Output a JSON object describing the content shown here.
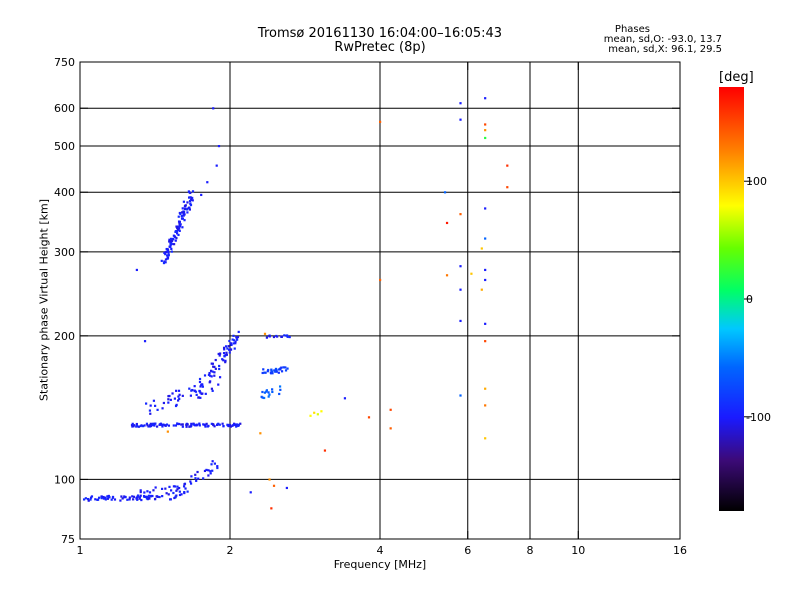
{
  "chart_data": {
    "type": "scatter",
    "title": "Tromsø 20161130 16:04:00–16:05:43",
    "subtitle": "RwPretec (8p)",
    "xlabel": "Frequency [MHz]",
    "ylabel": "Stationary phase Virtual Height [km]",
    "x_scale": "log",
    "y_scale": "log",
    "xlim": [
      1,
      16
    ],
    "ylim": [
      75,
      750
    ],
    "grid": true,
    "x_ticks": [
      {
        "value": 1,
        "label": "1"
      },
      {
        "value": 2,
        "label": "2"
      },
      {
        "value": 4,
        "label": "4"
      },
      {
        "value": 6,
        "label": "6"
      },
      {
        "value": 8,
        "label": "8"
      },
      {
        "value": 10,
        "label": "10"
      },
      {
        "value": 16,
        "label": "16"
      }
    ],
    "y_ticks": [
      {
        "value": 75,
        "label": "75"
      },
      {
        "value": 100,
        "label": "100"
      },
      {
        "value": 200,
        "label": "200"
      },
      {
        "value": 300,
        "label": "300"
      },
      {
        "value": 400,
        "label": "400"
      },
      {
        "value": 500,
        "label": "500"
      },
      {
        "value": 600,
        "label": "600"
      },
      {
        "value": 750,
        "label": "750"
      }
    ],
    "x_grid": [
      2,
      4,
      6,
      8,
      10
    ],
    "y_grid": [
      100,
      200,
      300,
      400,
      500,
      600
    ],
    "colorbar": {
      "label": "[deg]",
      "range": [
        -180,
        180
      ],
      "ticks": [
        {
          "value": 100,
          "label": "100"
        },
        {
          "value": 0,
          "label": "0"
        },
        {
          "value": -100,
          "label": "-100"
        }
      ],
      "placement": "right"
    },
    "stats": {
      "heading": "Phases",
      "line1": "mean, sd,O: -93.0, 13.7",
      "line2": "mean, sd,X: 96.1, 29.5"
    },
    "traces": [
      {
        "from": [
          1.0,
          91
        ],
        "to": [
          1.58,
          92
        ],
        "count": 70,
        "phase": -100,
        "spread": 0.012
      },
      {
        "from": [
          1.3,
          92
        ],
        "to": [
          1.62,
          97
        ],
        "count": 30,
        "phase": -100,
        "spread": 0.025
      },
      {
        "from": [
          1.55,
          92
        ],
        "to": [
          1.9,
          108
        ],
        "count": 30,
        "phase": -100,
        "spread": 0.03
      },
      {
        "from": [
          1.27,
          130
        ],
        "to": [
          2.1,
          130
        ],
        "count": 110,
        "phase": -100,
        "spread": 0.008
      },
      {
        "from": [
          1.35,
          140
        ],
        "to": [
          1.9,
          160
        ],
        "count": 40,
        "phase": -100,
        "spread": 0.035
      },
      {
        "from": [
          1.7,
          150
        ],
        "to": [
          2.08,
          200
        ],
        "count": 70,
        "phase": -100,
        "spread": 0.03
      },
      {
        "from": [
          2.3,
          168
        ],
        "to": [
          2.6,
          170
        ],
        "count": 30,
        "phase": -80,
        "spread": 0.012
      },
      {
        "from": [
          2.3,
          150
        ],
        "to": [
          2.55,
          154
        ],
        "count": 15,
        "phase": -60,
        "spread": 0.02
      },
      {
        "from": [
          2.35,
          199
        ],
        "to": [
          2.65,
          200
        ],
        "count": 15,
        "phase": -100,
        "spread": 0.006
      },
      {
        "from": [
          1.47,
          285
        ],
        "to": [
          1.68,
          400
        ],
        "count": 110,
        "phase": -100,
        "spread": 0.025
      }
    ],
    "points": [
      {
        "x": 1.35,
        "y": 195,
        "phase": -100
      },
      {
        "x": 1.88,
        "y": 455,
        "phase": -100
      },
      {
        "x": 1.9,
        "y": 500,
        "phase": -100
      },
      {
        "x": 1.85,
        "y": 600,
        "phase": -100
      },
      {
        "x": 1.75,
        "y": 395,
        "phase": -100
      },
      {
        "x": 1.8,
        "y": 420,
        "phase": -100
      },
      {
        "x": 1.3,
        "y": 275,
        "phase": -100
      },
      {
        "x": 1.5,
        "y": 126,
        "phase": 120
      },
      {
        "x": 2.4,
        "y": 100,
        "phase": 120
      },
      {
        "x": 2.45,
        "y": 97,
        "phase": 140
      },
      {
        "x": 2.42,
        "y": 87,
        "phase": 160
      },
      {
        "x": 2.6,
        "y": 96,
        "phase": -100
      },
      {
        "x": 2.2,
        "y": 94,
        "phase": -100
      },
      {
        "x": 2.3,
        "y": 125,
        "phase": 120
      },
      {
        "x": 2.35,
        "y": 202,
        "phase": 120
      },
      {
        "x": 2.9,
        "y": 136,
        "phase": 80
      },
      {
        "x": 2.95,
        "y": 138,
        "phase": 90
      },
      {
        "x": 3.0,
        "y": 137,
        "phase": 70
      },
      {
        "x": 3.05,
        "y": 139,
        "phase": 80
      },
      {
        "x": 3.1,
        "y": 115,
        "phase": 160
      },
      {
        "x": 3.4,
        "y": 148,
        "phase": -100
      },
      {
        "x": 3.8,
        "y": 135,
        "phase": 150
      },
      {
        "x": 4.0,
        "y": 262,
        "phase": 140
      },
      {
        "x": 4.0,
        "y": 562,
        "phase": 140
      },
      {
        "x": 4.2,
        "y": 140,
        "phase": 150
      },
      {
        "x": 4.2,
        "y": 128,
        "phase": 140
      },
      {
        "x": 5.4,
        "y": 400,
        "phase": -60
      },
      {
        "x": 5.45,
        "y": 345,
        "phase": 170
      },
      {
        "x": 5.45,
        "y": 268,
        "phase": 130
      },
      {
        "x": 5.8,
        "y": 360,
        "phase": 140
      },
      {
        "x": 5.8,
        "y": 280,
        "phase": -100
      },
      {
        "x": 5.8,
        "y": 250,
        "phase": -100
      },
      {
        "x": 5.8,
        "y": 215,
        "phase": -100
      },
      {
        "x": 5.8,
        "y": 615,
        "phase": -100
      },
      {
        "x": 5.8,
        "y": 568,
        "phase": -100
      },
      {
        "x": 5.8,
        "y": 150,
        "phase": -60
      },
      {
        "x": 6.1,
        "y": 270,
        "phase": 100
      },
      {
        "x": 6.5,
        "y": 630,
        "phase": -100
      },
      {
        "x": 6.5,
        "y": 555,
        "phase": 150
      },
      {
        "x": 6.5,
        "y": 540,
        "phase": 120
      },
      {
        "x": 6.5,
        "y": 520,
        "phase": 20
      },
      {
        "x": 6.5,
        "y": 370,
        "phase": -100
      },
      {
        "x": 6.5,
        "y": 320,
        "phase": -60
      },
      {
        "x": 6.5,
        "y": 275,
        "phase": -100
      },
      {
        "x": 6.5,
        "y": 262,
        "phase": -100
      },
      {
        "x": 6.5,
        "y": 212,
        "phase": -100
      },
      {
        "x": 6.5,
        "y": 195,
        "phase": 150
      },
      {
        "x": 6.5,
        "y": 155,
        "phase": 110
      },
      {
        "x": 6.5,
        "y": 143,
        "phase": 130
      },
      {
        "x": 6.5,
        "y": 122,
        "phase": 100
      },
      {
        "x": 6.4,
        "y": 305,
        "phase": 100
      },
      {
        "x": 6.4,
        "y": 250,
        "phase": 110
      },
      {
        "x": 7.2,
        "y": 455,
        "phase": 160
      },
      {
        "x": 7.2,
        "y": 410,
        "phase": 150
      }
    ]
  }
}
